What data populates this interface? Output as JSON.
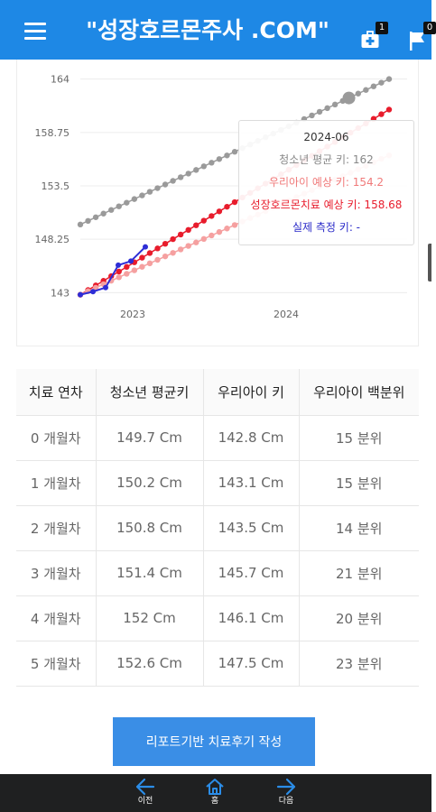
{
  "header": {
    "title": "\"성장호르몬주사 .COM\"",
    "menu_icon": "hamburger-menu-icon",
    "icons": [
      {
        "name": "medical-plus-icon",
        "badge": "1"
      },
      {
        "name": "flag-icon",
        "badge": "0"
      }
    ]
  },
  "chart_data": {
    "type": "line",
    "title": "",
    "xlabel": "",
    "ylabel": "",
    "x_ticks": [
      "2023",
      "2024"
    ],
    "y_ticks": [
      143,
      148.25,
      153.5,
      158.75,
      164
    ],
    "ylim": [
      142.5,
      164.5
    ],
    "grid": "horizontal",
    "legend": "none",
    "series": [
      {
        "key": "avg",
        "color": "#9a9a9a",
        "start": 149.7,
        "end": 164.0
      },
      {
        "key": "treat",
        "color": "#e81c2c",
        "start": 142.8,
        "end": 161.0
      },
      {
        "key": "mine",
        "color": "#f5a0a0",
        "start": 142.8,
        "end": 156.5
      },
      {
        "key": "real",
        "color": "#2d2dd6",
        "points": [
          142.8,
          143.1,
          143.5,
          145.7,
          146.1,
          147.5
        ]
      }
    ],
    "tooltip": {
      "date": "2024-06",
      "avg": "청소년 평균 키: 162",
      "mine": "우리아이 예상 키: 154.2",
      "treat": "성장호르몬치료 예상 키: 158.68",
      "real": "실제 측정 키: -"
    }
  },
  "table": {
    "headers": [
      "치료 연차",
      "청소년 평균키",
      "우리아이 키",
      "우리아이 백분위"
    ],
    "rows": [
      [
        "0 개월차",
        "149.7 Cm",
        "142.8 Cm",
        "15 분위"
      ],
      [
        "1 개월차",
        "150.2 Cm",
        "143.1 Cm",
        "15 분위"
      ],
      [
        "2 개월차",
        "150.8 Cm",
        "143.5 Cm",
        "14 분위"
      ],
      [
        "3 개월차",
        "151.4 Cm",
        "145.7 Cm",
        "21 분위"
      ],
      [
        "4 개월차",
        "152 Cm",
        "146.1 Cm",
        "20 분위"
      ],
      [
        "5 개월차",
        "152.6 Cm",
        "147.5 Cm",
        "23 분위"
      ]
    ]
  },
  "report_button": "리포트기반 치료후기 작성",
  "bottom_nav": [
    {
      "label": "이전",
      "icon": "arrow-left-icon"
    },
    {
      "label": "홈",
      "icon": "home-icon"
    },
    {
      "label": "다음",
      "icon": "arrow-right-icon"
    }
  ]
}
